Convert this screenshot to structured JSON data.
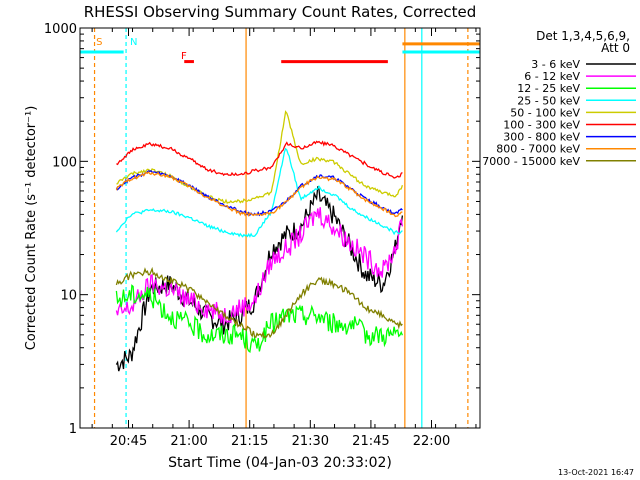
{
  "chart_data": {
    "type": "line",
    "title": "RHESSI Observing Summary Count Rates, Corrected",
    "xlabel": "Start Time (04-Jan-03 20:33:02)",
    "ylabel": "Corrected Count Rate (s⁻¹ detector⁻¹)",
    "yscale": "log",
    "ylim": [
      1,
      1000
    ],
    "xlim": [
      20.55,
      22.2
    ],
    "x_ticks": [
      {
        "value": 20.75,
        "label": "20:45"
      },
      {
        "value": 21.0,
        "label": "21:00"
      },
      {
        "value": 21.25,
        "label": "21:15"
      },
      {
        "value": 21.5,
        "label": "21:30"
      },
      {
        "value": 21.75,
        "label": "21:45"
      },
      {
        "value": 22.0,
        "label": "22:00"
      }
    ],
    "y_ticks": [
      {
        "value": 1,
        "label": "1"
      },
      {
        "value": 10,
        "label": "10"
      },
      {
        "value": 100,
        "label": "100"
      },
      {
        "value": 1000,
        "label": "1000"
      }
    ],
    "legend_header": [
      "Det 1,3,4,5,6,9,",
      "Att 0"
    ],
    "legend_position": "right",
    "timestamp": "13-Oct-2021 16:47",
    "x": [
      20.7,
      20.76,
      20.84,
      20.92,
      21.0,
      21.07,
      21.14,
      21.21,
      21.27,
      21.34,
      21.4,
      21.46,
      21.53,
      21.6,
      21.67,
      21.73,
      21.8,
      21.85,
      21.88
    ],
    "series": [
      {
        "name": "3 - 6 keV",
        "color": "#000000",
        "values": [
          3,
          3.5,
          11,
          12,
          9,
          7,
          6,
          7,
          9,
          22,
          28,
          32,
          55,
          38,
          22,
          14,
          12,
          22,
          45
        ]
      },
      {
        "name": "6 - 12 keV",
        "color": "#ff00ff",
        "values": [
          7,
          8,
          12,
          11,
          9,
          8,
          7,
          8,
          9,
          18,
          22,
          28,
          42,
          32,
          24,
          19,
          15,
          22,
          35
        ]
      },
      {
        "name": "12 - 25 keV",
        "color": "#00ff00",
        "values": [
          9,
          10,
          10,
          7,
          6,
          5,
          5,
          5,
          4,
          6,
          7,
          7,
          7,
          6,
          6,
          5,
          5,
          5,
          5
        ]
      },
      {
        "name": "25 - 50 keV",
        "color": "#00ffff",
        "values": [
          30,
          40,
          43,
          42,
          38,
          33,
          30,
          28,
          28,
          42,
          130,
          52,
          64,
          56,
          44,
          38,
          33,
          29,
          30
        ]
      },
      {
        "name": "50 - 100 keV",
        "color": "#cccc00",
        "values": [
          68,
          80,
          87,
          78,
          65,
          55,
          50,
          50,
          53,
          58,
          240,
          95,
          105,
          98,
          78,
          65,
          58,
          55,
          65
        ]
      },
      {
        "name": "100 - 300 keV",
        "color": "#ff0000",
        "values": [
          95,
          120,
          135,
          125,
          105,
          88,
          80,
          80,
          85,
          90,
          135,
          125,
          140,
          130,
          110,
          95,
          82,
          75,
          80
        ]
      },
      {
        "name": "300 - 800 keV",
        "color": "#0000ff",
        "values": [
          62,
          75,
          84,
          78,
          66,
          55,
          48,
          42,
          40,
          42,
          50,
          65,
          78,
          75,
          62,
          52,
          45,
          40,
          44
        ]
      },
      {
        "name": "800 - 7000 keV",
        "color": "#ff8800",
        "values": [
          62,
          74,
          82,
          77,
          65,
          54,
          47,
          41,
          39,
          41,
          49,
          64,
          76,
          73,
          61,
          51,
          44,
          39,
          42
        ]
      },
      {
        "name": "7000 - 15000 keV",
        "color": "#808000",
        "values": [
          12,
          14,
          15,
          13,
          11,
          9,
          7,
          6,
          5,
          5,
          7,
          10,
          13,
          12,
          10,
          8,
          7,
          6,
          6
        ]
      }
    ],
    "annotations": {
      "flags": [
        {
          "label": "S",
          "color": "#ff8800",
          "x": 20.6
        },
        {
          "label": "N",
          "color": "#00ffff",
          "x": 20.74
        },
        {
          "label": "F",
          "color": "#ff0000",
          "x": 20.95
        }
      ],
      "segments": [
        {
          "name": "saa",
          "color": "#00ffff",
          "x0": 20.55,
          "x1": 20.73,
          "y": 660
        },
        {
          "name": "night",
          "color": "#ff8800",
          "x0": 21.88,
          "x1": 22.2,
          "y": 760
        },
        {
          "name": "night",
          "color": "#00ffff",
          "x0": 21.88,
          "x1": 22.2,
          "y": 660
        },
        {
          "name": "flare",
          "color": "#ff0000",
          "x0": 20.98,
          "x1": 21.02,
          "y": 560
        },
        {
          "name": "flare",
          "color": "#ff0000",
          "x0": 21.38,
          "x1": 21.82,
          "y": 560
        }
      ],
      "vlines": [
        {
          "x": 20.61,
          "color": "#ff8800",
          "dashed": true
        },
        {
          "x": 20.74,
          "color": "#00ffff",
          "dashed": true
        },
        {
          "x": 21.235,
          "color": "#ff8800",
          "dashed": false
        },
        {
          "x": 21.89,
          "color": "#ff8800",
          "dashed": false
        },
        {
          "x": 21.96,
          "color": "#00ffff",
          "dashed": false
        },
        {
          "x": 22.15,
          "color": "#ff8800",
          "dashed": true
        }
      ]
    }
  }
}
